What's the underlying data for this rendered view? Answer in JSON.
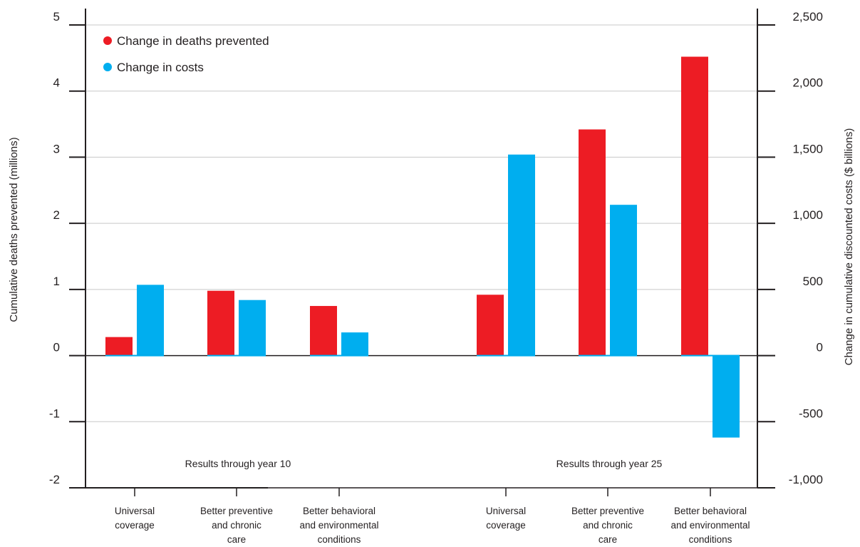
{
  "chart_data": {
    "type": "bar",
    "groups": [
      {
        "label": "Results through year 10",
        "categories": [
          0,
          1,
          2
        ]
      },
      {
        "label": "Results through year 25",
        "categories": [
          3,
          4,
          5
        ]
      }
    ],
    "categories": [
      [
        "Universal",
        "coverage"
      ],
      [
        "Better preventive",
        "and chronic",
        "care"
      ],
      [
        "Better behavioral",
        "and environmental",
        "conditions"
      ],
      [
        "Universal",
        "coverage"
      ],
      [
        "Better preventive",
        "and chronic",
        "care"
      ],
      [
        "Better behavioral",
        "and environmental",
        "conditions"
      ]
    ],
    "series": [
      {
        "name": "Change in deaths prevented",
        "axis": "left",
        "color": "#ed1c24",
        "values": [
          0.28,
          0.98,
          0.75,
          0.92,
          3.42,
          4.52
        ]
      },
      {
        "name": "Change in costs",
        "axis": "right",
        "color": "#00aeef",
        "values": [
          535,
          420,
          175,
          1520,
          1140,
          -620
        ]
      }
    ],
    "ylabel_left": "Cumulative deaths prevented (millions)",
    "ylabel_right": "Change in cumulative discounted costs ($ billions)",
    "ylim_left": [
      -2,
      5
    ],
    "ylim_right": [
      -1000,
      2500
    ],
    "yticks_left": [
      "5",
      "4",
      "3",
      "2",
      "1",
      "0",
      "-1",
      "-2"
    ],
    "yticks_right": [
      "2,500",
      "2,000",
      "1,500",
      "1,000",
      "500",
      "0",
      "-500",
      "-1,000"
    ],
    "ytick_values_left": [
      5,
      4,
      3,
      2,
      1,
      0,
      -1,
      -2
    ],
    "ytick_values_right": [
      2500,
      2000,
      1500,
      1000,
      500,
      0,
      -500,
      -1000
    ],
    "grid": true,
    "legend_position": "top-left"
  }
}
